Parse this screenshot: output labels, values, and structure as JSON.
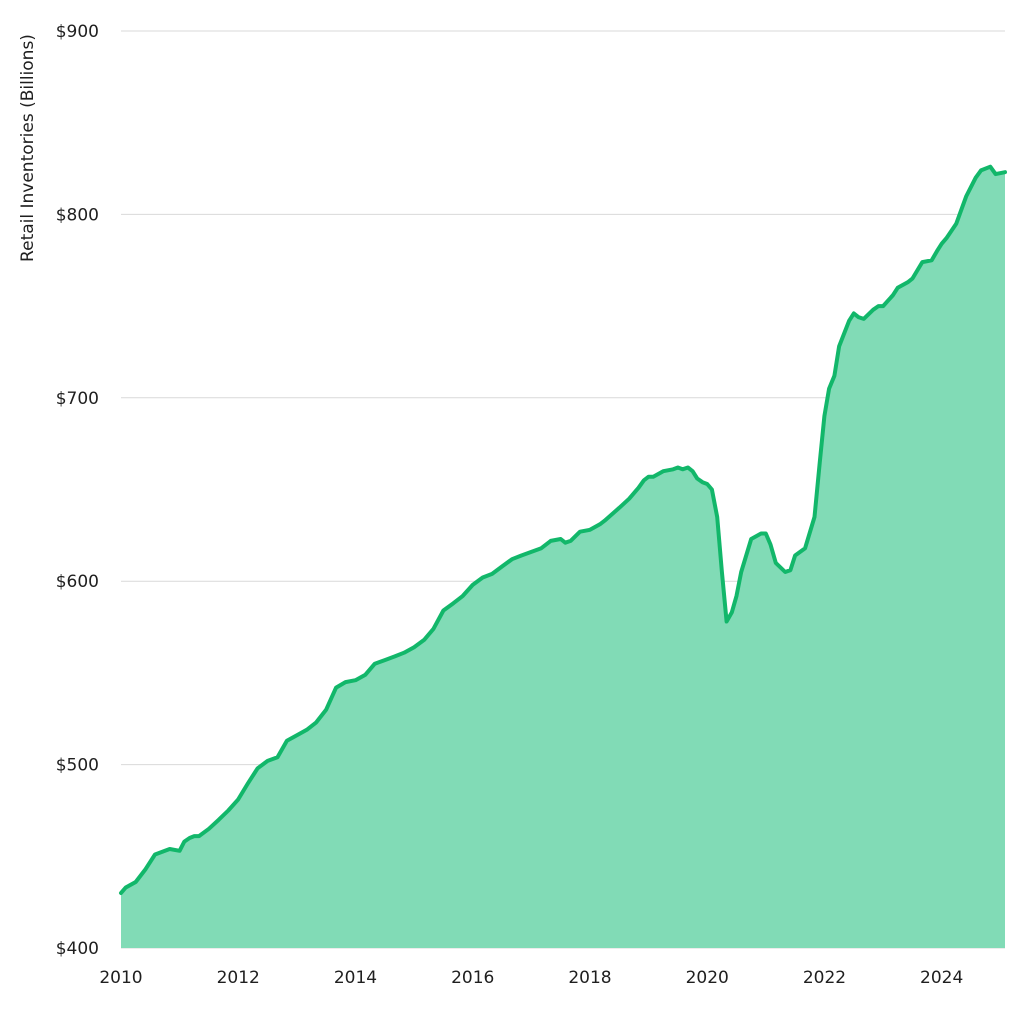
{
  "chart_data": {
    "type": "area",
    "title": "",
    "xlabel": "",
    "ylabel": "Retail Inventories (Billions)",
    "x_range": [
      2010.0,
      2025.08
    ],
    "ylim": [
      400,
      900
    ],
    "y_ticks": [
      400,
      500,
      600,
      700,
      800,
      900
    ],
    "y_tick_labels": [
      "$400",
      "$500",
      "$600",
      "$700",
      "$800",
      "$900"
    ],
    "x_ticks": [
      2010,
      2012,
      2014,
      2016,
      2018,
      2020,
      2022,
      2024
    ],
    "x_tick_labels": [
      "2010",
      "2012",
      "2014",
      "2016",
      "2018",
      "2020",
      "2022",
      "2024"
    ],
    "grid": "horizontal",
    "legend": "none",
    "colors": {
      "line": "#12b76a",
      "fill": "#81dbb6",
      "grid": "#d9d9d9"
    },
    "series": [
      {
        "x": [
          2010.0,
          2010.08,
          2010.25,
          2010.42,
          2010.58,
          2010.75,
          2010.83,
          2011.0,
          2011.08,
          2011.17,
          2011.25,
          2011.33,
          2011.5,
          2011.67,
          2011.83,
          2012.0,
          2012.17,
          2012.33,
          2012.5,
          2012.67,
          2012.83,
          2013.0,
          2013.17,
          2013.33,
          2013.5,
          2013.67,
          2013.83,
          2014.0,
          2014.17,
          2014.33,
          2014.5,
          2014.67,
          2014.83,
          2015.0,
          2015.17,
          2015.33,
          2015.5,
          2015.67,
          2015.83,
          2016.0,
          2016.17,
          2016.33,
          2016.5,
          2016.67,
          2016.83,
          2017.0,
          2017.17,
          2017.33,
          2017.5,
          2017.58,
          2017.67,
          2017.83,
          2018.0,
          2018.17,
          2018.25,
          2018.5,
          2018.67,
          2018.75,
          2018.83,
          2018.92,
          2019.0,
          2019.08,
          2019.25,
          2019.42,
          2019.5,
          2019.58,
          2019.67,
          2019.75,
          2019.83,
          2019.92,
          2020.0,
          2020.08,
          2020.17,
          2020.25,
          2020.33,
          2020.42,
          2020.5,
          2020.58,
          2020.75,
          2020.92,
          2021.0,
          2021.08,
          2021.17,
          2021.33,
          2021.42,
          2021.5,
          2021.67,
          2021.83,
          2021.92,
          2022.0,
          2022.08,
          2022.17,
          2022.25,
          2022.42,
          2022.5,
          2022.58,
          2022.67,
          2022.83,
          2022.92,
          2023.0,
          2023.17,
          2023.25,
          2023.42,
          2023.5,
          2023.67,
          2023.83,
          2023.92,
          2024.0,
          2024.08,
          2024.25,
          2024.42,
          2024.58,
          2024.67,
          2024.83,
          2024.92,
          2025.08
        ],
        "values": [
          430,
          433,
          436,
          443,
          451,
          453,
          454,
          453,
          458,
          460,
          461,
          461,
          465,
          470,
          475,
          481,
          490,
          498,
          502,
          504,
          513,
          516,
          519,
          523,
          530,
          542,
          545,
          546,
          549,
          555,
          557,
          559,
          561,
          564,
          568,
          574,
          584,
          588,
          592,
          598,
          602,
          604,
          608,
          612,
          614,
          616,
          618,
          622,
          623,
          621,
          622,
          627,
          628,
          631,
          633,
          640,
          645,
          648,
          651,
          655,
          657,
          657,
          660,
          661,
          662,
          661,
          662,
          660,
          656,
          654,
          653,
          650,
          635,
          605,
          578,
          583,
          592,
          605,
          623,
          626,
          626,
          620,
          610,
          605,
          606,
          614,
          618,
          635,
          665,
          690,
          705,
          712,
          728,
          742,
          746,
          744,
          743,
          748,
          750,
          750,
          756,
          760,
          763,
          765,
          774,
          775,
          780,
          784,
          787,
          795,
          810,
          820,
          824,
          826,
          822,
          823
        ]
      }
    ]
  }
}
